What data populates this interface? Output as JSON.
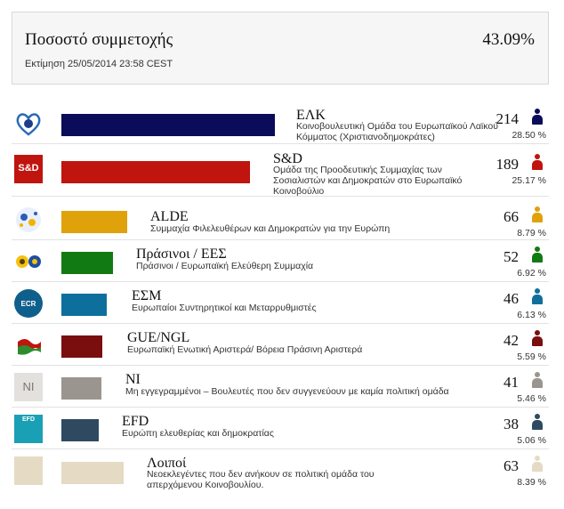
{
  "header": {
    "title": "Ποσοστό συμμετοχής",
    "turnout": "43.09%",
    "estimate": "Εκτίμηση 25/05/2014 23:58 CEST"
  },
  "groups": [
    {
      "name": "ΕΛΚ",
      "desc": "Κοινοβουλευτική Ομάδα του Ευρωπαϊκού Λαϊκού Κόμματος (Χριστιανοδημοκράτες)",
      "seats": "214",
      "share": "28.50 %",
      "color": "#0a0c5a",
      "logo": "epp-heart-logo"
    },
    {
      "name": "S&D",
      "desc": "Ομάδα της Προοδευτικής Συμμαχίας των Σοσιαλιστών και Δημοκρατών στο Ευρωπαϊκό Κοινοβούλιο",
      "seats": "189",
      "share": "25.17 %",
      "color": "#c0140f",
      "logo": "s-and-d-logo",
      "logo_text": "S&D"
    },
    {
      "name": "ALDE",
      "desc": "Συμμαχία Φιλελευθέρων και Δημοκρατών για την Ευρώπη",
      "seats": "66",
      "share": "8.79 %",
      "color": "#e0a20a",
      "logo": "alde-logo"
    },
    {
      "name": "Πράσινοι / ΕΕΣ",
      "desc": "Πράσινοι / Ευρωπαϊκή Ελεύθερη Συμμαχία",
      "seats": "52",
      "share": "6.92 %",
      "color": "#127a12",
      "logo": "greens-efa-logo"
    },
    {
      "name": "ΕΣΜ",
      "desc": "Ευρωπαίοι Συντηρητικοί και Μεταρρυθμιστές",
      "seats": "46",
      "share": "6.13 %",
      "color": "#0f6f9c",
      "logo": "ecr-logo",
      "logo_text": "ECR"
    },
    {
      "name": "GUE/NGL",
      "desc": "Ευρωπαϊκή Ενωτική Αριστερά/ Βόρεια Πράσινη Αριστερά",
      "seats": "42",
      "share": "5.59 %",
      "color": "#7a0e0e",
      "logo": "gue-ngl-flag-logo"
    },
    {
      "name": "NI",
      "desc": "Μη εγγεγραμμένοι – Βουλευτές που δεν συγγενεύουν με καμία πολιτική ομάδα",
      "seats": "41",
      "share": "5.46 %",
      "color": "#9a958f",
      "logo": "ni-logo",
      "logo_text": "NI"
    },
    {
      "name": "EFD",
      "desc": "Ευρώπη ελευθερίας και δημοκρατίας",
      "seats": "38",
      "share": "5.06 %",
      "color": "#2f4a60",
      "logo": "efd-logo",
      "logo_text": "EFD"
    },
    {
      "name": "Λοιποί",
      "desc": "Νεοεκλεγέντες που δεν ανήκουν σε πολιτική ομάδα του απερχόμενου Κοινοβουλίου.",
      "seats": "63",
      "share": "8.39 %",
      "color": "#e5dac4",
      "logo": "others-logo"
    }
  ]
}
